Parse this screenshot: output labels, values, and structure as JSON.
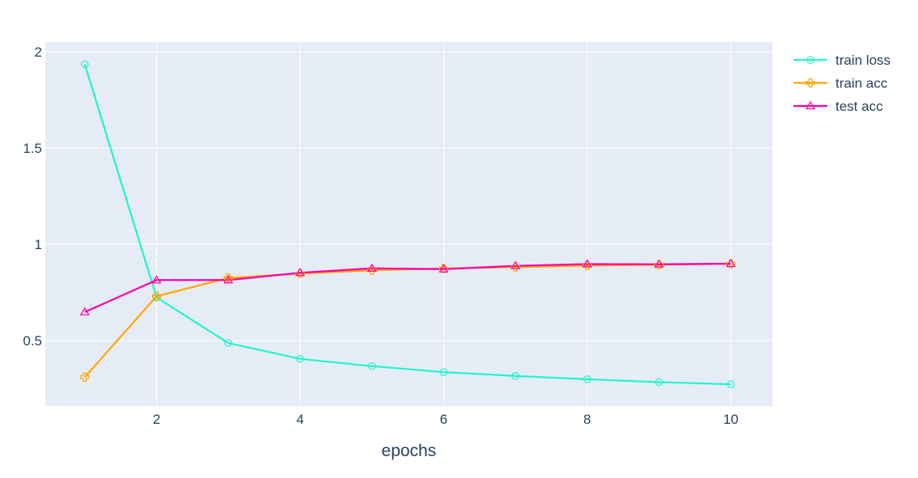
{
  "chart_data": {
    "type": "line",
    "title": "",
    "xlabel": "epochs",
    "ylabel": "",
    "x": [
      1,
      2,
      3,
      4,
      5,
      6,
      7,
      8,
      9,
      10
    ],
    "xlim": [
      0.45,
      10.58
    ],
    "ylim": [
      0.16,
      2.05
    ],
    "x_ticks": [
      2,
      4,
      6,
      8,
      10
    ],
    "y_ticks": [
      0.5,
      1,
      1.5,
      2
    ],
    "x_tick_labels": [
      "2",
      "4",
      "6",
      "8",
      "10"
    ],
    "y_tick_labels": [
      "0.5",
      "1",
      "1.5",
      "2"
    ],
    "grid": true,
    "legend_position": "top-right",
    "plot_background": "#e5ecf6",
    "series": [
      {
        "name": "train loss",
        "color": "#22f5cc",
        "marker": "circle-open",
        "values": [
          1.935,
          0.724,
          0.487,
          0.405,
          0.367,
          0.336,
          0.316,
          0.299,
          0.284,
          0.273
        ]
      },
      {
        "name": "train acc",
        "color": "#ffa500",
        "marker": "cross-open",
        "values": [
          0.31,
          0.73,
          0.825,
          0.848,
          0.865,
          0.874,
          0.882,
          0.889,
          0.894,
          0.899
        ]
      },
      {
        "name": "test acc",
        "color": "#ff00a8",
        "marker": "triangle-up-open",
        "values": [
          0.648,
          0.814,
          0.814,
          0.852,
          0.875,
          0.871,
          0.888,
          0.897,
          0.896,
          0.899
        ]
      }
    ]
  }
}
